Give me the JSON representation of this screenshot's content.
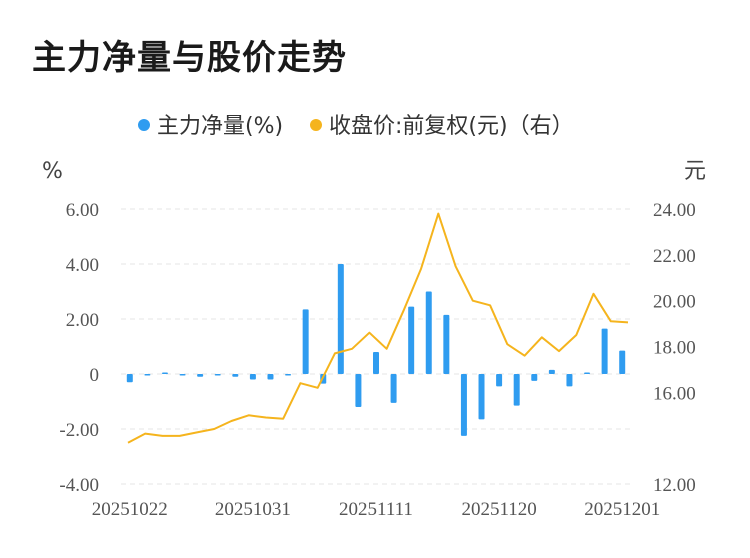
{
  "header": {
    "title": "主力净量与股价走势"
  },
  "chart_data": {
    "type": "bar+line",
    "title": "主力净量与股价走势",
    "legend": [
      {
        "name": "主力净量(%)",
        "color": "#2f9cf0"
      },
      {
        "name": "收盘价:前复权(元)（右）",
        "color": "#f5b41d"
      }
    ],
    "left_axis": {
      "unit": "%",
      "ylim": [
        -4,
        6
      ],
      "ticks": [
        "6.00",
        "4.00",
        "2.00",
        "0",
        "-2.00",
        "-4.00"
      ],
      "tick_values": [
        6,
        4,
        2,
        0,
        -2,
        -4
      ]
    },
    "right_axis": {
      "unit": "元",
      "ylim": [
        12,
        24
      ],
      "ticks": [
        "24.00",
        "22.00",
        "20.00",
        "18.00",
        "16.00",
        "12.00"
      ],
      "tick_values": [
        24,
        22,
        20,
        18,
        16,
        12
      ]
    },
    "x_ticks": [
      "20251022",
      "20251031",
      "20251111",
      "20251120",
      "20251201"
    ],
    "x_tick_index": [
      0,
      7,
      14,
      21,
      28
    ],
    "series": [
      {
        "name": "主力净量(%)",
        "axis": "left",
        "type": "bar",
        "values": [
          -0.3,
          -0.05,
          0.05,
          -0.05,
          -0.1,
          -0.05,
          -0.1,
          -0.2,
          -0.2,
          -0.05,
          2.35,
          -0.35,
          4.0,
          -1.2,
          0.8,
          -1.05,
          2.45,
          3.0,
          2.15,
          -2.25,
          -1.65,
          -0.45,
          -1.15,
          -0.25,
          0.15,
          -0.45,
          0.05,
          1.65,
          0.85
        ]
      },
      {
        "name": "收盘价:前复权(元)（右）",
        "axis": "right",
        "type": "line",
        "values": [
          13.8,
          14.2,
          14.1,
          14.1,
          14.25,
          14.4,
          14.75,
          15.0,
          14.9,
          14.85,
          16.4,
          16.2,
          17.7,
          17.9,
          18.6,
          17.9,
          19.6,
          21.4,
          23.8,
          21.5,
          20.0,
          19.8,
          18.1,
          17.6,
          18.4,
          17.8,
          18.5,
          20.3,
          19.1,
          19.05
        ]
      }
    ]
  }
}
